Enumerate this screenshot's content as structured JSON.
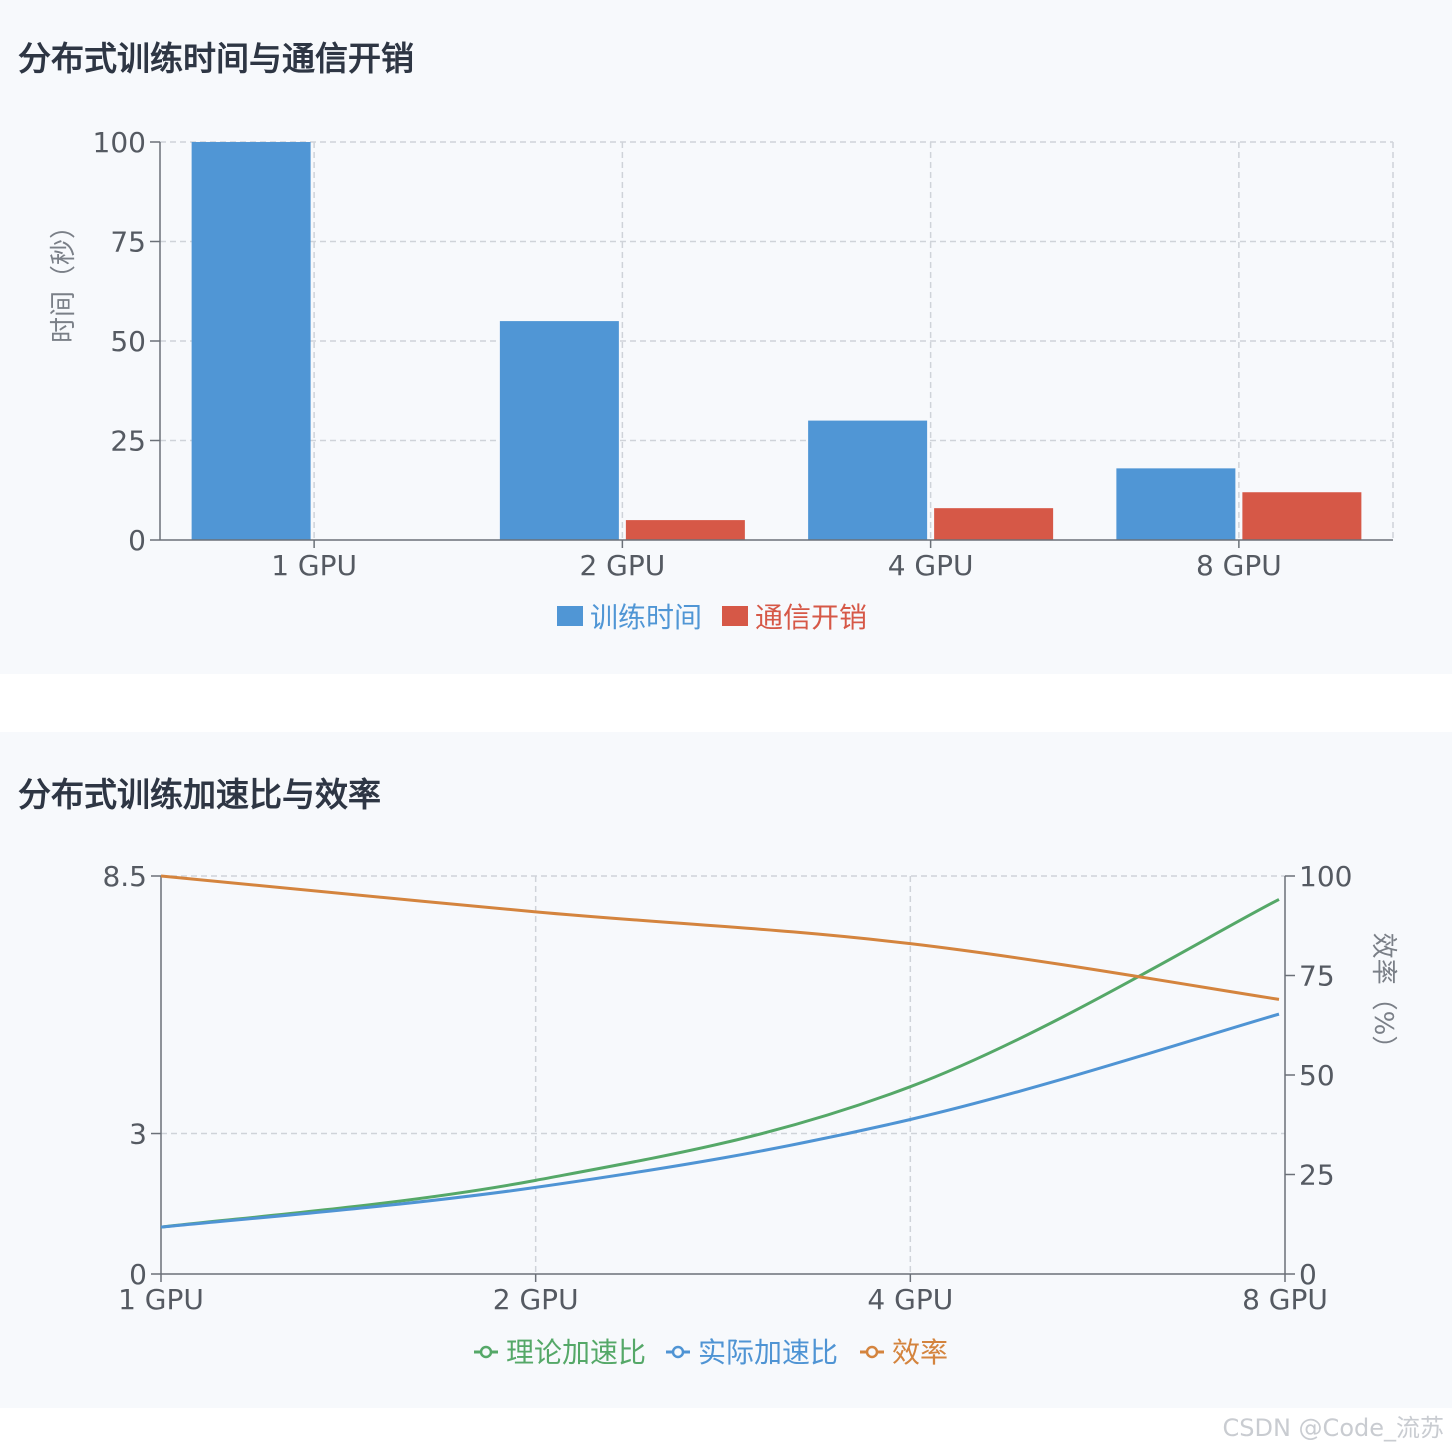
{
  "watermark": "CSDN @Code_流苏",
  "chart_data": [
    {
      "type": "bar",
      "title": "分布式训练时间与通信开销",
      "categories": [
        "1 GPU",
        "2 GPU",
        "4 GPU",
        "8 GPU"
      ],
      "series": [
        {
          "name": "训练时间",
          "color": "#5096d5",
          "values": [
            100,
            55,
            30,
            18
          ]
        },
        {
          "name": "通信开销",
          "color": "#d65847",
          "values": [
            0,
            5,
            8,
            12
          ]
        }
      ],
      "ylabel": "时间（秒）",
      "ylim": [
        0,
        100
      ],
      "yticks": [
        0,
        25,
        50,
        75,
        100
      ],
      "grid": true,
      "legend": "bottom-center"
    },
    {
      "type": "line",
      "title": "分布式训练加速比与效率",
      "categories": [
        "1 GPU",
        "2 GPU",
        "4 GPU",
        "8 GPU"
      ],
      "series": [
        {
          "name": "理论加速比",
          "color": "#55a868",
          "axis": "left",
          "values": [
            1,
            2,
            4,
            8
          ]
        },
        {
          "name": "实际加速比",
          "color": "#4f94d4",
          "axis": "left",
          "values": [
            1,
            1.85,
            3.3,
            5.55
          ]
        },
        {
          "name": "效率",
          "color": "#d4843e",
          "axis": "right",
          "values": [
            100,
            91,
            83,
            69
          ]
        }
      ],
      "ylim_left": [
        0,
        8.5
      ],
      "yticks_left": [
        0,
        3,
        8.5
      ],
      "ylim_right": [
        0,
        100
      ],
      "yticks_right": [
        0,
        25,
        50,
        75,
        100
      ],
      "ylabel_right": "效率（%）",
      "grid": true,
      "legend": "bottom-center"
    }
  ]
}
